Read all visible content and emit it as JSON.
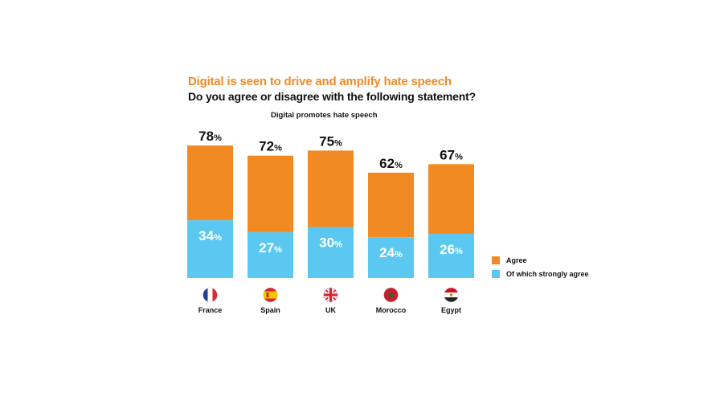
{
  "header": {
    "title": "Digital is seen to drive and amplify hate speech",
    "subtitle": "Do you agree or disagree with the following statement?"
  },
  "colors": {
    "agree": "#f28a24",
    "strongly_agree": "#5bc8f2",
    "title": "#f28a24",
    "text": "#111111"
  },
  "legend": {
    "agree_label": "Agree",
    "strongly_label": "Of which strongly agree"
  },
  "chart_data": {
    "type": "bar",
    "title": "Digital promotes hate speech",
    "unit": "%",
    "categories": [
      "France",
      "Spain",
      "UK",
      "Morocco",
      "Egypt"
    ],
    "flags": [
      "france-flag",
      "spain-flag",
      "uk-flag",
      "morocco-flag",
      "egypt-flag"
    ],
    "series": [
      {
        "name": "Agree",
        "values": [
          78,
          72,
          75,
          62,
          67
        ]
      },
      {
        "name": "Of which strongly agree",
        "values": [
          34,
          27,
          30,
          24,
          26
        ]
      }
    ],
    "ylim": [
      0,
      100
    ],
    "grid": false,
    "legend_position": "right"
  }
}
